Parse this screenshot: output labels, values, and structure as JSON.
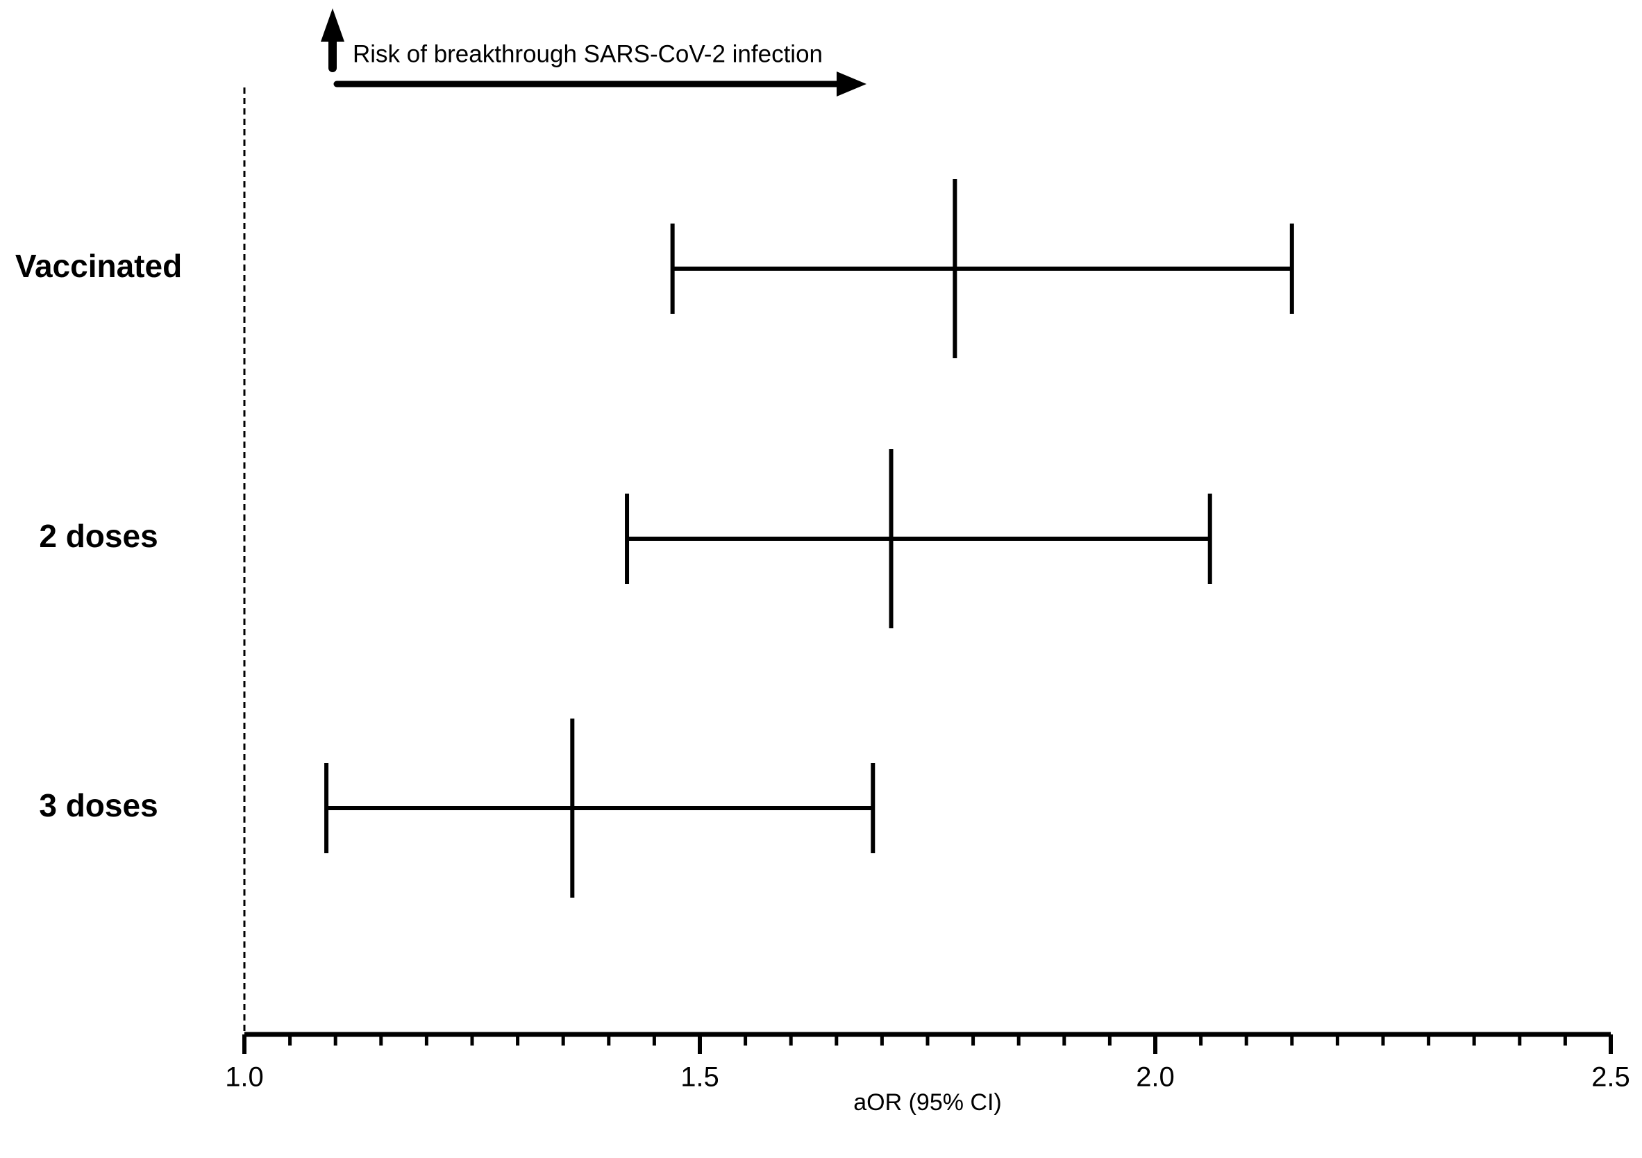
{
  "chart_data": {
    "type": "forest",
    "annotation": "Risk of breakthrough SARS-CoV-2 infection",
    "x_label": "aOR (95% CI)",
    "categories": [
      "Vaccinated",
      "2 doses",
      "3 doses"
    ],
    "values": [
      1.78,
      1.71,
      1.36
    ],
    "lower": [
      1.47,
      1.42,
      1.09
    ],
    "upper": [
      2.15,
      2.06,
      1.69
    ],
    "color": "#000000",
    "reference_line": 1.0,
    "xlim": [
      1.0,
      2.5
    ],
    "xticks": [
      {
        "value": 1.0,
        "label": "1.0"
      },
      {
        "value": 1.5,
        "label": "1.5"
      },
      {
        "value": 2.0,
        "label": "2.0"
      },
      {
        "value": 2.5,
        "label": "2.5"
      }
    ],
    "xminorticks": [
      1.05,
      1.1,
      1.15,
      1.2,
      1.25,
      1.3,
      1.35,
      1.4,
      1.45,
      1.55,
      1.6,
      1.65,
      1.7,
      1.75,
      1.8,
      1.85,
      1.9,
      1.95,
      2.05,
      2.1,
      2.15,
      2.2,
      2.25,
      2.3,
      2.35,
      2.4,
      2.45
    ]
  }
}
